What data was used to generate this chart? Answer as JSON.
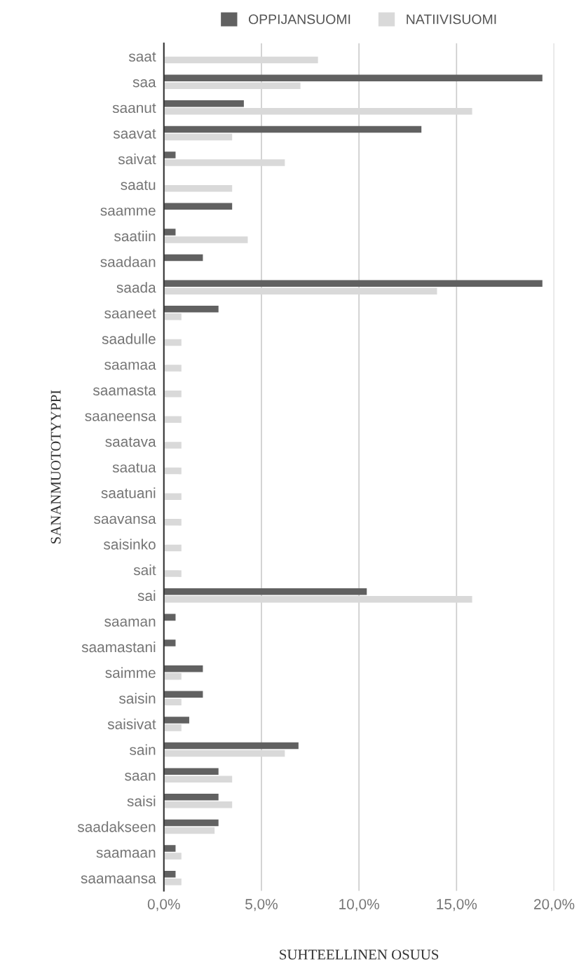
{
  "chart_data": {
    "type": "bar",
    "orientation": "horizontal",
    "xlabel": "SUHTEELLINEN OSUUS",
    "ylabel": "SANANMUOTOTYYPPI",
    "categories": [
      "saat",
      "saa",
      "saanut",
      "saavat",
      "saivat",
      "saatu",
      "saamme",
      "saatiin",
      "saadaan",
      "saada",
      "saaneet",
      "saadulle",
      "saamaa",
      "saamasta",
      "saaneensa",
      "saatava",
      "saatua",
      "saatuani",
      "saavansa",
      "saisinko",
      "sait",
      "sai",
      "saaman",
      "saamastani",
      "saimme",
      "saisin",
      "saisivat",
      "sain",
      "saan",
      "saisi",
      "saadakseen",
      "saamaan",
      "saamaansa"
    ],
    "series": [
      {
        "name": "OPPIJANSUOMI",
        "color": "#616161",
        "values": [
          null,
          19.4,
          4.1,
          13.2,
          0.6,
          null,
          3.5,
          0.6,
          2.0,
          19.4,
          2.8,
          null,
          null,
          null,
          null,
          null,
          null,
          null,
          null,
          null,
          null,
          10.4,
          0.6,
          0.6,
          2.0,
          2.0,
          1.3,
          6.9,
          2.8,
          2.8,
          2.8,
          0.6,
          0.6
        ]
      },
      {
        "name": "NATIIVISUOMI",
        "color": "#d9d9d9",
        "values": [
          7.9,
          7.0,
          15.8,
          3.5,
          6.2,
          3.5,
          null,
          4.3,
          null,
          14.0,
          0.9,
          0.9,
          0.9,
          0.9,
          0.9,
          0.9,
          0.9,
          0.9,
          0.9,
          0.9,
          0.9,
          15.8,
          null,
          null,
          0.9,
          0.9,
          0.9,
          6.2,
          3.5,
          3.5,
          2.6,
          0.9,
          0.9
        ]
      }
    ],
    "xlim": [
      0,
      20
    ],
    "xticks": [
      {
        "value": 0,
        "label": "0,0%"
      },
      {
        "value": 5,
        "label": "5,0%"
      },
      {
        "value": 10,
        "label": "10,0%"
      },
      {
        "value": 15,
        "label": "15,0%"
      },
      {
        "value": 20,
        "label": "20,0%"
      }
    ],
    "grid": "x",
    "legend": "top"
  }
}
